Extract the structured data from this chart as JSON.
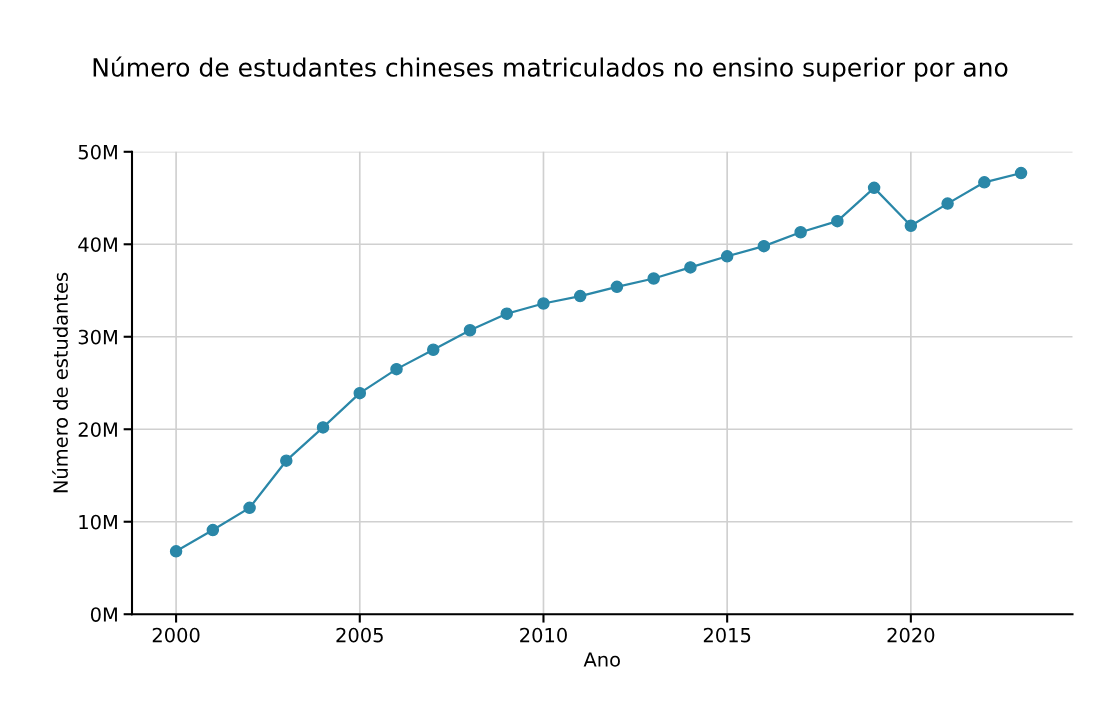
{
  "chart_data": {
    "type": "line",
    "title": "Número de estudantes chineses matriculados no ensino superior por ano",
    "xlabel": "Ano",
    "ylabel": "Número de estudantes",
    "x": [
      2000,
      2001,
      2002,
      2003,
      2004,
      2005,
      2006,
      2007,
      2008,
      2009,
      2010,
      2011,
      2012,
      2013,
      2014,
      2015,
      2016,
      2017,
      2018,
      2019,
      2020,
      2021,
      2022,
      2023
    ],
    "series": [
      {
        "color": "#2a87a8",
        "values": [
          6.8,
          9.1,
          11.5,
          16.6,
          20.2,
          23.9,
          26.5,
          28.6,
          30.7,
          32.5,
          33.6,
          34.4,
          35.4,
          36.3,
          37.5,
          38.7,
          39.8,
          41.3,
          42.5,
          46.1,
          42.0,
          44.4,
          46.7,
          47.7
        ]
      }
    ],
    "xlim": [
      1998.8,
      2024.4
    ],
    "xticks": [
      2000,
      2005,
      2010,
      2015,
      2020
    ],
    "ylim": [
      0,
      50
    ],
    "yticks": [
      {
        "value": 0,
        "label": "0M"
      },
      {
        "value": 10,
        "label": "10M"
      },
      {
        "value": 20,
        "label": "20M"
      },
      {
        "value": 30,
        "label": "30M"
      },
      {
        "value": 40,
        "label": "40M"
      },
      {
        "value": 50,
        "label": "50M"
      }
    ],
    "grid": true,
    "marker": "circle",
    "line_style": "solid"
  }
}
